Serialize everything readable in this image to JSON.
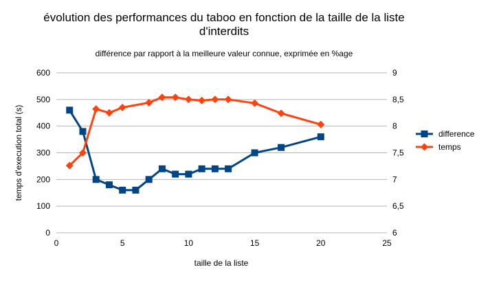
{
  "chart_data": {
    "type": "line",
    "title": "évolution des performances du taboo en fonction de la taille de la liste d'interdits",
    "title_lines": [
      "évolution des performances du taboo en fonction de la taille de la liste",
      "d'interdits"
    ],
    "subtitle": "différence par rapport à la meilleure valeur connue, exprimée en %age",
    "xlabel": "taille de la liste",
    "ylabel": "temps d'execution total (s)",
    "xlim": [
      0,
      25
    ],
    "x_ticks": [
      "0",
      "5",
      "10",
      "15",
      "20",
      "25"
    ],
    "ylim": [
      0,
      600
    ],
    "y_ticks": [
      "0",
      "100",
      "200",
      "300",
      "400",
      "500",
      "600"
    ],
    "y2lim": [
      6,
      9
    ],
    "y2_ticks": [
      "6",
      "6,5",
      "7",
      "7,5",
      "8",
      "8,5",
      "9"
    ],
    "grid": "horizontal",
    "legend_position": "right",
    "series": [
      {
        "name": "difference",
        "axis": "left",
        "marker": "square",
        "color": "#004586",
        "x": [
          1,
          2,
          3,
          4,
          5,
          6,
          7,
          8,
          9,
          10,
          11,
          12,
          13,
          15,
          17,
          20
        ],
        "values": [
          460,
          380,
          200,
          180,
          160,
          160,
          200,
          240,
          220,
          220,
          240,
          240,
          240,
          300,
          320,
          360
        ]
      },
      {
        "name": "temps",
        "axis": "right",
        "marker": "diamond",
        "color": "#ff420e",
        "x": [
          1,
          2,
          3,
          4,
          5,
          7,
          8,
          9,
          10,
          11,
          12,
          13,
          15,
          17,
          20
        ],
        "values": [
          7.26,
          7.5,
          8.32,
          8.25,
          8.35,
          8.44,
          8.54,
          8.54,
          8.5,
          8.48,
          8.5,
          8.5,
          8.43,
          8.24,
          8.03
        ]
      }
    ]
  }
}
